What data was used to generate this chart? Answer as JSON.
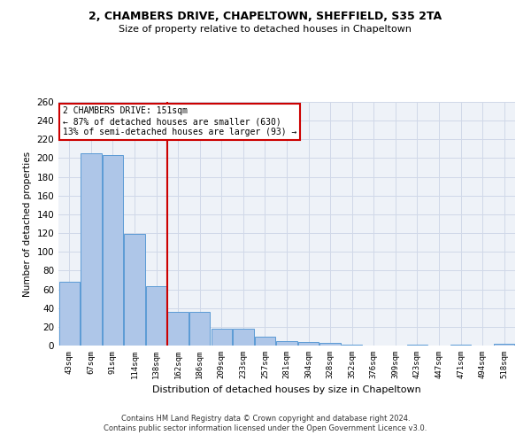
{
  "title1": "2, CHAMBERS DRIVE, CHAPELTOWN, SHEFFIELD, S35 2TA",
  "title2": "Size of property relative to detached houses in Chapeltown",
  "xlabel": "Distribution of detached houses by size in Chapeltown",
  "ylabel": "Number of detached properties",
  "bar_labels": [
    "43sqm",
    "67sqm",
    "91sqm",
    "114sqm",
    "138sqm",
    "162sqm",
    "186sqm",
    "209sqm",
    "233sqm",
    "257sqm",
    "281sqm",
    "304sqm",
    "328sqm",
    "352sqm",
    "376sqm",
    "399sqm",
    "423sqm",
    "447sqm",
    "471sqm",
    "494sqm",
    "518sqm"
  ],
  "bar_values": [
    68,
    205,
    203,
    119,
    63,
    36,
    36,
    18,
    18,
    9,
    5,
    4,
    3,
    1,
    0,
    0,
    1,
    0,
    1,
    0,
    2
  ],
  "bar_color": "#aec6e8",
  "bar_edgecolor": "#5b9bd5",
  "redline_x": 4.5,
  "annotation_text": "2 CHAMBERS DRIVE: 151sqm\n← 87% of detached houses are smaller (630)\n13% of semi-detached houses are larger (93) →",
  "annotation_box_color": "#ffffff",
  "annotation_border_color": "#cc0000",
  "redline_color": "#cc0000",
  "grid_color": "#d0d8e8",
  "background_color": "#eef2f8",
  "ylim": [
    0,
    260
  ],
  "yticks": [
    0,
    20,
    40,
    60,
    80,
    100,
    120,
    140,
    160,
    180,
    200,
    220,
    240,
    260
  ],
  "footer1": "Contains HM Land Registry data © Crown copyright and database right 2024.",
  "footer2": "Contains public sector information licensed under the Open Government Licence v3.0."
}
